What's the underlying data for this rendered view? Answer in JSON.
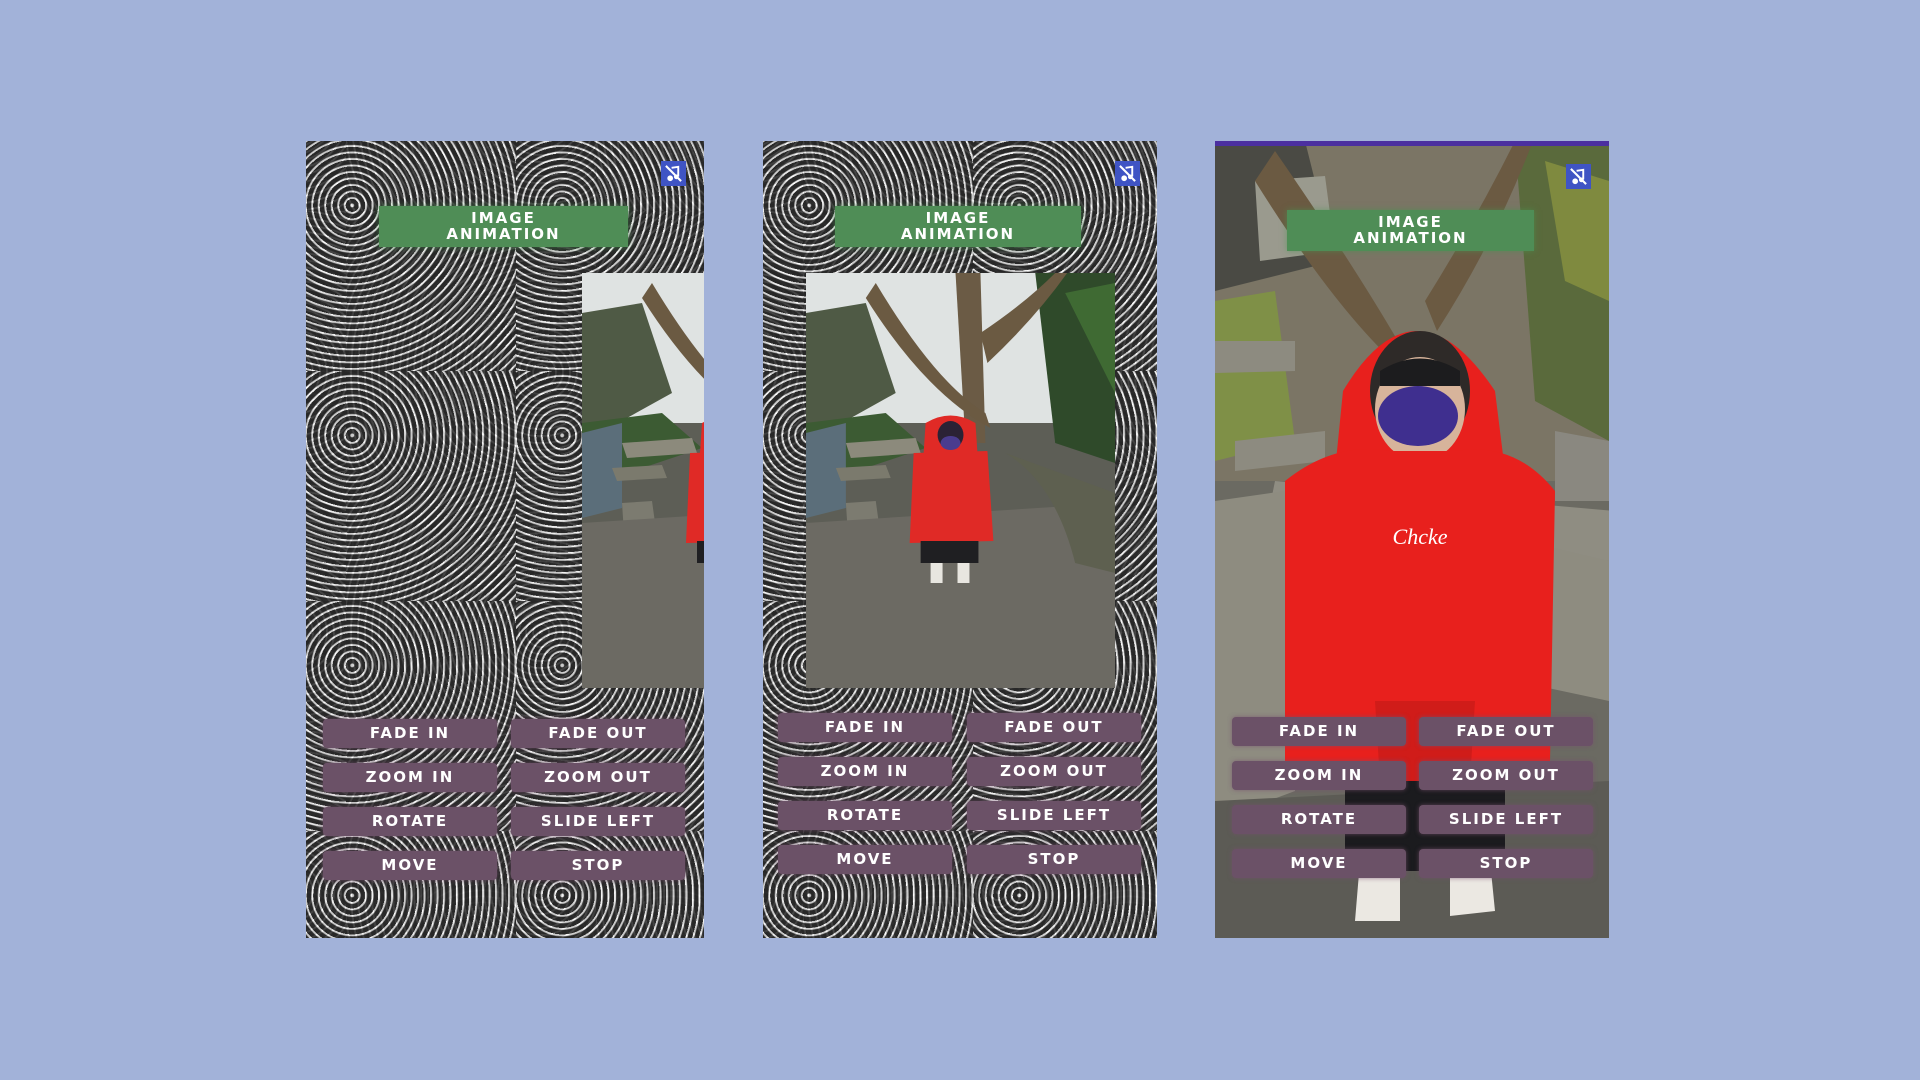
{
  "colors": {
    "background": "#a2b2d9",
    "banner": "#4f8d56",
    "button": "#6b5167",
    "audio_icon": "#3f54c4",
    "accent_strip": "#4b2fa0"
  },
  "screens": [
    {
      "title_line1": "IMAGE",
      "title_line2": "ANIMATION",
      "audio_icon": "mute-music-icon",
      "buttons": {
        "fade_in": "FADE IN",
        "fade_out": "FADE OUT",
        "zoom_in": "ZOOM IN",
        "zoom_out": "ZOOM OUT",
        "rotate": "ROTATE",
        "slide_left": "SLIDE LEFT",
        "move": "MOVE",
        "stop": "STOP"
      }
    },
    {
      "title_line1": "IMAGE",
      "title_line2": "ANIMATION",
      "audio_icon": "mute-music-icon",
      "buttons": {
        "fade_in": "FADE IN",
        "fade_out": "FADE OUT",
        "zoom_in": "ZOOM IN",
        "zoom_out": "ZOOM OUT",
        "rotate": "ROTATE",
        "slide_left": "SLIDE LEFT",
        "move": "MOVE",
        "stop": "STOP"
      }
    },
    {
      "title_line1": "IMAGE",
      "title_line2": "ANIMATION",
      "audio_icon": "mute-music-icon",
      "buttons": {
        "fade_in": "FADE IN",
        "fade_out": "FADE OUT",
        "zoom_in": "ZOOM IN",
        "zoom_out": "ZOOM OUT",
        "rotate": "ROTATE",
        "slide_left": "SLIDE LEFT",
        "move": "MOVE",
        "stop": "STOP"
      }
    }
  ]
}
